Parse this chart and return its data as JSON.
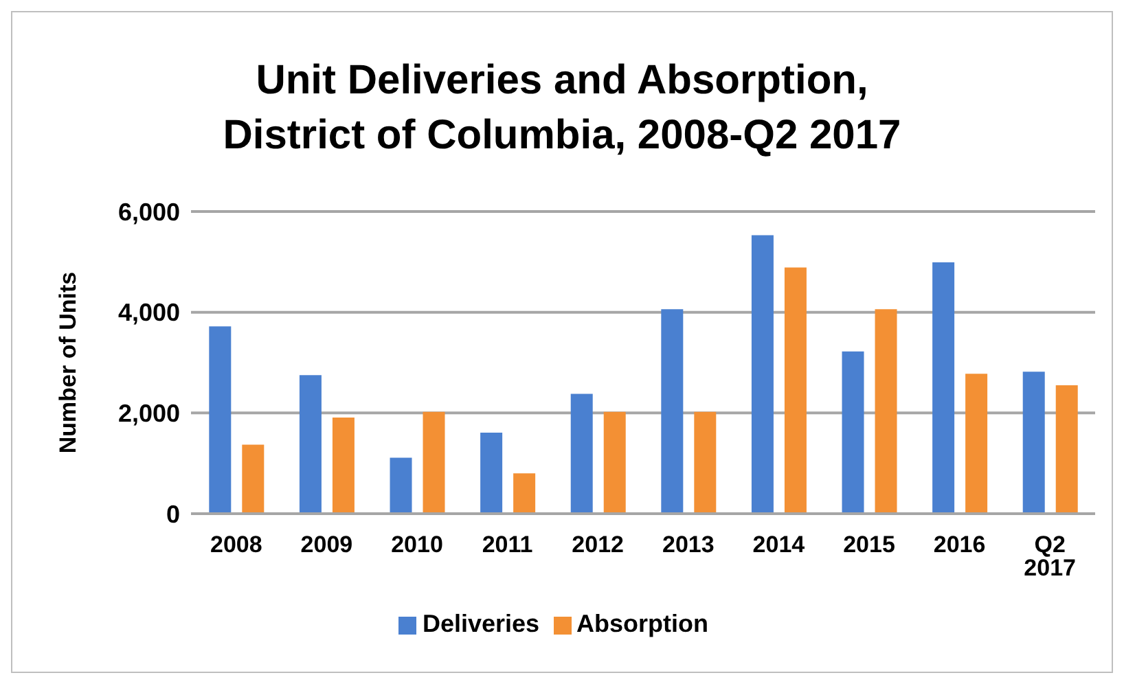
{
  "chart_data": {
    "type": "bar",
    "title": "Unit Deliveries and Absorption, District of Columbia, 2008-Q2 2017",
    "ylabel": "Number of Units",
    "categories": [
      "2008",
      "2009",
      "2010",
      "2011",
      "2012",
      "2013",
      "2014",
      "2015",
      "2016",
      "Q2 2017"
    ],
    "series": [
      {
        "name": "Deliveries",
        "color": "#4a80d0",
        "values": [
          3720,
          2750,
          1110,
          1610,
          2380,
          4060,
          5530,
          3220,
          4990,
          2820
        ]
      },
      {
        "name": "Absorption",
        "color": "#f39034",
        "values": [
          1370,
          1910,
          2020,
          800,
          2020,
          2020,
          4890,
          4060,
          2780,
          2550
        ]
      }
    ],
    "ylim": [
      0,
      6000
    ],
    "yticks": [
      {
        "value": 0,
        "label": "0"
      },
      {
        "value": 2000,
        "label": "2,000"
      },
      {
        "value": 4000,
        "label": "4,000"
      },
      {
        "value": 6000,
        "label": "6,000"
      }
    ],
    "grid": "y",
    "legend": "bottom"
  }
}
